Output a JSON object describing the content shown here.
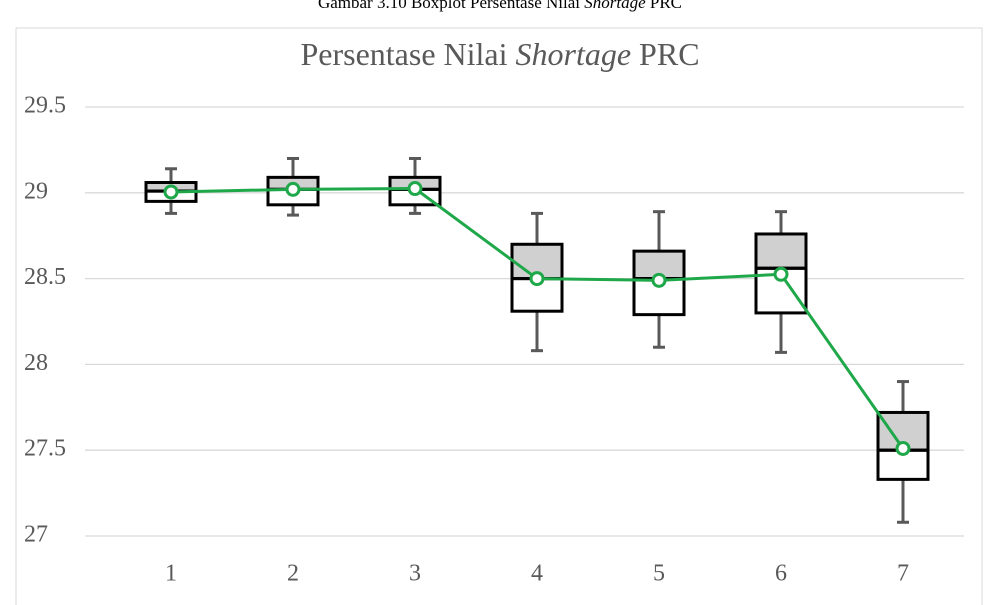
{
  "caption": [
    {
      "text": "Gambar 3.10 Boxplot Persentase Nilai "
    },
    {
      "text": "Shortage",
      "italic": true
    },
    {
      "text": " PRC"
    }
  ],
  "chart_data": {
    "type": "box",
    "title": [
      {
        "text": "Persentase Nilai "
      },
      {
        "text": "Shortage",
        "italic": true
      },
      {
        "text": " PRC"
      }
    ],
    "categories": [
      "1",
      "2",
      "3",
      "4",
      "5",
      "6",
      "7"
    ],
    "boxes": [
      {
        "min": 28.88,
        "q1": 28.95,
        "median": 29.01,
        "q3": 29.06,
        "max": 29.14,
        "mean": 29.005
      },
      {
        "min": 28.87,
        "q1": 28.93,
        "median": 29.02,
        "q3": 29.09,
        "max": 29.2,
        "mean": 29.02
      },
      {
        "min": 28.88,
        "q1": 28.93,
        "median": 29.02,
        "q3": 29.09,
        "max": 29.2,
        "mean": 29.025
      },
      {
        "min": 28.08,
        "q1": 28.31,
        "median": 28.5,
        "q3": 28.7,
        "max": 28.88,
        "mean": 28.5
      },
      {
        "min": 28.1,
        "q1": 28.29,
        "median": 28.5,
        "q3": 28.66,
        "max": 28.89,
        "mean": 28.49
      },
      {
        "min": 28.07,
        "q1": 28.3,
        "median": 28.56,
        "q3": 28.76,
        "max": 28.89,
        "mean": 28.525
      },
      {
        "min": 27.08,
        "q1": 27.33,
        "median": 27.5,
        "q3": 27.72,
        "max": 27.9,
        "mean": 27.51
      }
    ],
    "upper_color": "#d0d0d0",
    "lower_color": "#ffffff",
    "whisker_color": "#595959",
    "mean_color": "#1fa84a",
    "ylim": [
      27,
      29.5
    ],
    "yticks": [
      27,
      27.5,
      28,
      28.5,
      29,
      29.5
    ],
    "grid": true
  }
}
